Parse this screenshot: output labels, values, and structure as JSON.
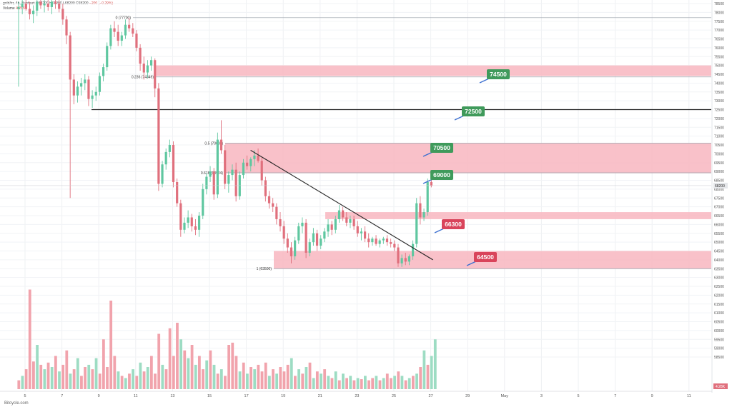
{
  "header": {
    "symbol": "gold/irr, 4h, Bonbast",
    "ohlc": "O68200 H68200 L68200 C68200",
    "change": "−200 (−0.29%)",
    "volume_label": "Volume",
    "volume_value": "4.285K"
  },
  "watermark": "Bitcycle.com",
  "colors": {
    "bull": "#5fc7a0",
    "bear": "#e0707d",
    "bull_vol": "#9ddcc3",
    "bear_vol": "#f1a3ac",
    "zone": "#f8b6bf",
    "label_green": "#3f9a5b",
    "label_red": "#d9445b"
  },
  "chart_data": {
    "type": "candlestick",
    "y_axis_ticks": [
      78500,
      78000,
      77500,
      77000,
      76500,
      76000,
      75500,
      75000,
      74500,
      74000,
      73500,
      73000,
      72500,
      72000,
      71500,
      71000,
      70500,
      70000,
      69500,
      69000,
      68500,
      68000,
      67500,
      67000,
      66500,
      66000,
      65500,
      65000,
      64500,
      64000,
      63500,
      63000,
      62500,
      62000,
      61500,
      61000,
      60500,
      60000,
      59500,
      59000,
      58500
    ],
    "x_axis_ticks": [
      "5",
      "7",
      "9",
      "11",
      "13",
      "15",
      "17",
      "19",
      "21",
      "23",
      "25",
      "27",
      "29",
      "May",
      "3",
      "5",
      "7",
      "9",
      "11"
    ],
    "last_price": "68200",
    "right_badge": "4.28K",
    "fib_levels": [
      {
        "label": "0 (77700)",
        "value": 77700
      },
      {
        "label": "0.236 (74349)",
        "value": 74349
      },
      {
        "label": "0.5 (70600)",
        "value": 70600
      },
      {
        "label": "0.618 (68924)",
        "value": 68924
      },
      {
        "label": "1 (63500)",
        "value": 63500
      }
    ],
    "horizontal_line": 72500,
    "zones": [
      {
        "from": 74400,
        "to": 75000
      },
      {
        "from": 68900,
        "to": 70600
      },
      {
        "from": 66300,
        "to": 66700
      },
      {
        "from": 63500,
        "to": 64500
      }
    ],
    "trendline": {
      "start": {
        "x": "17",
        "y": 70200
      },
      "end": {
        "x": "27",
        "y": 64000
      }
    },
    "labels": [
      {
        "text": "74500",
        "color": "green"
      },
      {
        "text": "72500",
        "color": "green"
      },
      {
        "text": "70500",
        "color": "green"
      },
      {
        "text": "69000",
        "color": "green"
      },
      {
        "text": "66300",
        "color": "red"
      },
      {
        "text": "64500",
        "color": "red"
      }
    ],
    "candles": [
      {
        "o": 78200,
        "h": 78600,
        "l": 73800,
        "c": 78300
      },
      {
        "o": 78300,
        "h": 78700,
        "l": 77900,
        "c": 78500
      },
      {
        "o": 78500,
        "h": 78700,
        "l": 78100,
        "c": 78200
      },
      {
        "o": 78200,
        "h": 78600,
        "l": 77600,
        "c": 77900
      },
      {
        "o": 77900,
        "h": 78400,
        "l": 77400,
        "c": 78100
      },
      {
        "o": 78100,
        "h": 78800,
        "l": 77800,
        "c": 78600
      },
      {
        "o": 78600,
        "h": 78800,
        "l": 78200,
        "c": 78400
      },
      {
        "o": 78400,
        "h": 78700,
        "l": 78000,
        "c": 78500
      },
      {
        "o": 78500,
        "h": 78800,
        "l": 78100,
        "c": 78300
      },
      {
        "o": 78300,
        "h": 78700,
        "l": 77900,
        "c": 78600
      },
      {
        "o": 78600,
        "h": 78800,
        "l": 78200,
        "c": 78500
      },
      {
        "o": 78500,
        "h": 78700,
        "l": 78000,
        "c": 78200
      },
      {
        "o": 78200,
        "h": 78500,
        "l": 77300,
        "c": 77600
      },
      {
        "o": 77600,
        "h": 77800,
        "l": 76200,
        "c": 76700
      },
      {
        "o": 76700,
        "h": 76900,
        "l": 67500,
        "c": 74200
      },
      {
        "o": 74200,
        "h": 74500,
        "l": 72800,
        "c": 73300
      },
      {
        "o": 73300,
        "h": 74100,
        "l": 72900,
        "c": 73800
      },
      {
        "o": 73800,
        "h": 74300,
        "l": 73300,
        "c": 74000
      },
      {
        "o": 74000,
        "h": 74500,
        "l": 73600,
        "c": 74200
      },
      {
        "o": 74200,
        "h": 74400,
        "l": 72700,
        "c": 73100
      },
      {
        "o": 73100,
        "h": 73600,
        "l": 72600,
        "c": 73300
      },
      {
        "o": 73300,
        "h": 73800,
        "l": 73000,
        "c": 73500
      },
      {
        "o": 73500,
        "h": 74600,
        "l": 73300,
        "c": 74400
      },
      {
        "o": 74400,
        "h": 75100,
        "l": 74100,
        "c": 74900
      },
      {
        "o": 74900,
        "h": 76300,
        "l": 74700,
        "c": 76100
      },
      {
        "o": 76100,
        "h": 77300,
        "l": 75900,
        "c": 77100
      },
      {
        "o": 77100,
        "h": 77500,
        "l": 76600,
        "c": 76900
      },
      {
        "o": 76900,
        "h": 77300,
        "l": 76100,
        "c": 76400
      },
      {
        "o": 76400,
        "h": 76900,
        "l": 76100,
        "c": 76700
      },
      {
        "o": 76700,
        "h": 77600,
        "l": 76500,
        "c": 77300
      },
      {
        "o": 77300,
        "h": 77700,
        "l": 76900,
        "c": 77100
      },
      {
        "o": 77100,
        "h": 77400,
        "l": 76600,
        "c": 76800
      },
      {
        "o": 76800,
        "h": 77000,
        "l": 75800,
        "c": 76000
      },
      {
        "o": 76000,
        "h": 76200,
        "l": 74700,
        "c": 75100
      },
      {
        "o": 75100,
        "h": 75500,
        "l": 74200,
        "c": 74600
      },
      {
        "o": 74600,
        "h": 75300,
        "l": 74300,
        "c": 75000
      },
      {
        "o": 75000,
        "h": 75500,
        "l": 74700,
        "c": 75300
      },
      {
        "o": 75300,
        "h": 75400,
        "l": 73200,
        "c": 73700
      },
      {
        "o": 73700,
        "h": 74000,
        "l": 67900,
        "c": 68300
      },
      {
        "o": 68300,
        "h": 69600,
        "l": 68100,
        "c": 69400
      },
      {
        "o": 69400,
        "h": 70300,
        "l": 69100,
        "c": 70100
      },
      {
        "o": 70100,
        "h": 70800,
        "l": 69800,
        "c": 70500
      },
      {
        "o": 70500,
        "h": 70700,
        "l": 68100,
        "c": 68400
      },
      {
        "o": 68400,
        "h": 68600,
        "l": 67000,
        "c": 67200
      },
      {
        "o": 67200,
        "h": 67400,
        "l": 65300,
        "c": 65700
      },
      {
        "o": 65700,
        "h": 66400,
        "l": 65500,
        "c": 66100
      },
      {
        "o": 66100,
        "h": 66800,
        "l": 65800,
        "c": 66400
      },
      {
        "o": 66400,
        "h": 66600,
        "l": 65600,
        "c": 65900
      },
      {
        "o": 65900,
        "h": 66300,
        "l": 65400,
        "c": 65700
      },
      {
        "o": 65700,
        "h": 66700,
        "l": 65300,
        "c": 66500
      },
      {
        "o": 66500,
        "h": 68300,
        "l": 66300,
        "c": 68000
      },
      {
        "o": 68000,
        "h": 68900,
        "l": 67700,
        "c": 68700
      },
      {
        "o": 68700,
        "h": 69300,
        "l": 68400,
        "c": 69000
      },
      {
        "o": 69000,
        "h": 69200,
        "l": 67400,
        "c": 67700
      },
      {
        "o": 67700,
        "h": 71200,
        "l": 67500,
        "c": 70800
      },
      {
        "o": 70800,
        "h": 71900,
        "l": 70000,
        "c": 70200
      },
      {
        "o": 70200,
        "h": 70500,
        "l": 68000,
        "c": 68300
      },
      {
        "o": 68300,
        "h": 69000,
        "l": 67800,
        "c": 68800
      },
      {
        "o": 68800,
        "h": 69400,
        "l": 68500,
        "c": 69100
      },
      {
        "o": 69100,
        "h": 69500,
        "l": 67300,
        "c": 67600
      },
      {
        "o": 67600,
        "h": 69000,
        "l": 67400,
        "c": 68800
      },
      {
        "o": 68800,
        "h": 69700,
        "l": 68600,
        "c": 69500
      },
      {
        "o": 69500,
        "h": 69900,
        "l": 69100,
        "c": 69300
      },
      {
        "o": 69300,
        "h": 69800,
        "l": 69000,
        "c": 69700
      },
      {
        "o": 69700,
        "h": 70200,
        "l": 69300,
        "c": 69900
      },
      {
        "o": 69900,
        "h": 70300,
        "l": 69500,
        "c": 69600
      },
      {
        "o": 69600,
        "h": 69800,
        "l": 68200,
        "c": 68500
      },
      {
        "o": 68500,
        "h": 68700,
        "l": 67300,
        "c": 67600
      },
      {
        "o": 67600,
        "h": 67900,
        "l": 66900,
        "c": 67200
      },
      {
        "o": 67200,
        "h": 67500,
        "l": 66700,
        "c": 67000
      },
      {
        "o": 67000,
        "h": 67200,
        "l": 66000,
        "c": 66300
      },
      {
        "o": 66300,
        "h": 66700,
        "l": 65600,
        "c": 65900
      },
      {
        "o": 65900,
        "h": 66200,
        "l": 64900,
        "c": 65200
      },
      {
        "o": 65200,
        "h": 65500,
        "l": 64400,
        "c": 64700
      },
      {
        "o": 64700,
        "h": 65000,
        "l": 63800,
        "c": 64200
      },
      {
        "o": 64200,
        "h": 65300,
        "l": 64000,
        "c": 65100
      },
      {
        "o": 65100,
        "h": 66100,
        "l": 64900,
        "c": 65900
      },
      {
        "o": 65900,
        "h": 66400,
        "l": 65500,
        "c": 66100
      },
      {
        "o": 66100,
        "h": 66300,
        "l": 64100,
        "c": 64400
      },
      {
        "o": 64400,
        "h": 65200,
        "l": 64200,
        "c": 65000
      },
      {
        "o": 65000,
        "h": 65800,
        "l": 64800,
        "c": 65500
      },
      {
        "o": 65500,
        "h": 65700,
        "l": 64500,
        "c": 64800
      },
      {
        "o": 64800,
        "h": 65400,
        "l": 64600,
        "c": 65200
      },
      {
        "o": 65200,
        "h": 65800,
        "l": 65000,
        "c": 65600
      },
      {
        "o": 65600,
        "h": 66300,
        "l": 65300,
        "c": 66000
      },
      {
        "o": 66000,
        "h": 66200,
        "l": 65400,
        "c": 65700
      },
      {
        "o": 65700,
        "h": 66500,
        "l": 65500,
        "c": 66300
      },
      {
        "o": 66300,
        "h": 67100,
        "l": 66100,
        "c": 66800
      },
      {
        "o": 66800,
        "h": 67000,
        "l": 66200,
        "c": 66400
      },
      {
        "o": 66400,
        "h": 66700,
        "l": 65900,
        "c": 66100
      },
      {
        "o": 66100,
        "h": 66500,
        "l": 65800,
        "c": 66300
      },
      {
        "o": 66300,
        "h": 66500,
        "l": 65700,
        "c": 65900
      },
      {
        "o": 65900,
        "h": 66200,
        "l": 65300,
        "c": 65500
      },
      {
        "o": 65500,
        "h": 65800,
        "l": 65100,
        "c": 65600
      },
      {
        "o": 65600,
        "h": 65900,
        "l": 65000,
        "c": 65200
      },
      {
        "o": 65200,
        "h": 65500,
        "l": 64700,
        "c": 65000
      },
      {
        "o": 65000,
        "h": 65300,
        "l": 64800,
        "c": 65200
      },
      {
        "o": 65200,
        "h": 65400,
        "l": 64800,
        "c": 64900
      },
      {
        "o": 64900,
        "h": 65200,
        "l": 64700,
        "c": 65100
      },
      {
        "o": 65100,
        "h": 65300,
        "l": 64900,
        "c": 65200
      },
      {
        "o": 65200,
        "h": 65400,
        "l": 64800,
        "c": 65000
      },
      {
        "o": 65000,
        "h": 65200,
        "l": 64700,
        "c": 64900
      },
      {
        "o": 64900,
        "h": 65100,
        "l": 64500,
        "c": 64700
      },
      {
        "o": 64700,
        "h": 64900,
        "l": 63600,
        "c": 63800
      },
      {
        "o": 63800,
        "h": 64300,
        "l": 63600,
        "c": 64100
      },
      {
        "o": 64100,
        "h": 64400,
        "l": 63700,
        "c": 63900
      },
      {
        "o": 63900,
        "h": 64300,
        "l": 63700,
        "c": 64200
      },
      {
        "o": 64200,
        "h": 65100,
        "l": 64000,
        "c": 64900
      },
      {
        "o": 64900,
        "h": 67500,
        "l": 64700,
        "c": 67200
      },
      {
        "o": 67200,
        "h": 67600,
        "l": 66000,
        "c": 66400
      },
      {
        "o": 66400,
        "h": 66900,
        "l": 66200,
        "c": 66700
      },
      {
        "o": 66700,
        "h": 68600,
        "l": 66500,
        "c": 68400
      },
      {
        "o": 68400,
        "h": 68600,
        "l": 68100,
        "c": 68200
      }
    ],
    "volume": [
      {
        "v": 8,
        "up": false
      },
      {
        "v": 12,
        "up": true
      },
      {
        "v": 18,
        "up": false
      },
      {
        "v": 90,
        "up": false
      },
      {
        "v": 25,
        "up": false
      },
      {
        "v": 40,
        "up": true
      },
      {
        "v": 22,
        "up": false
      },
      {
        "v": 18,
        "up": true
      },
      {
        "v": 24,
        "up": false
      },
      {
        "v": 20,
        "up": true
      },
      {
        "v": 30,
        "up": false
      },
      {
        "v": 16,
        "up": true
      },
      {
        "v": 22,
        "up": false
      },
      {
        "v": 35,
        "up": false
      },
      {
        "v": 14,
        "up": true
      },
      {
        "v": 18,
        "up": false
      },
      {
        "v": 28,
        "up": true
      },
      {
        "v": 12,
        "up": false
      },
      {
        "v": 20,
        "up": false
      },
      {
        "v": 22,
        "up": true
      },
      {
        "v": 18,
        "up": false
      },
      {
        "v": 28,
        "up": true
      },
      {
        "v": 14,
        "up": false
      },
      {
        "v": 45,
        "up": false
      },
      {
        "v": 20,
        "up": false
      },
      {
        "v": 80,
        "up": false
      },
      {
        "v": 30,
        "up": false
      },
      {
        "v": 16,
        "up": true
      },
      {
        "v": 12,
        "up": false
      },
      {
        "v": 10,
        "up": true
      },
      {
        "v": 14,
        "up": false
      },
      {
        "v": 18,
        "up": true
      },
      {
        "v": 12,
        "up": false
      },
      {
        "v": 24,
        "up": true
      },
      {
        "v": 16,
        "up": false
      },
      {
        "v": 20,
        "up": true
      },
      {
        "v": 30,
        "up": false
      },
      {
        "v": 14,
        "up": false
      },
      {
        "v": 50,
        "up": false
      },
      {
        "v": 22,
        "up": true
      },
      {
        "v": 18,
        "up": false
      },
      {
        "v": 55,
        "up": false
      },
      {
        "v": 30,
        "up": false
      },
      {
        "v": 60,
        "up": false
      },
      {
        "v": 45,
        "up": true
      },
      {
        "v": 35,
        "up": false
      },
      {
        "v": 28,
        "up": true
      },
      {
        "v": 40,
        "up": false
      },
      {
        "v": 22,
        "up": true
      },
      {
        "v": 30,
        "up": false
      },
      {
        "v": 18,
        "up": false
      },
      {
        "v": 26,
        "up": true
      },
      {
        "v": 35,
        "up": false
      },
      {
        "v": 22,
        "up": true
      },
      {
        "v": 14,
        "up": false
      },
      {
        "v": 18,
        "up": true
      },
      {
        "v": 12,
        "up": false
      },
      {
        "v": 40,
        "up": false
      },
      {
        "v": 42,
        "up": false
      },
      {
        "v": 30,
        "up": false
      },
      {
        "v": 16,
        "up": true
      },
      {
        "v": 24,
        "up": false
      },
      {
        "v": 14,
        "up": true
      },
      {
        "v": 20,
        "up": false
      },
      {
        "v": 18,
        "up": true
      },
      {
        "v": 22,
        "up": false
      },
      {
        "v": 16,
        "up": false
      },
      {
        "v": 24,
        "up": false
      },
      {
        "v": 12,
        "up": true
      },
      {
        "v": 18,
        "up": false
      },
      {
        "v": 14,
        "up": true
      },
      {
        "v": 20,
        "up": false
      },
      {
        "v": 16,
        "up": false
      },
      {
        "v": 22,
        "up": false
      },
      {
        "v": 28,
        "up": true
      },
      {
        "v": 12,
        "up": false
      },
      {
        "v": 18,
        "up": true
      },
      {
        "v": 14,
        "up": false
      },
      {
        "v": 20,
        "up": true
      },
      {
        "v": 24,
        "up": false
      },
      {
        "v": 10,
        "up": true
      },
      {
        "v": 16,
        "up": false
      },
      {
        "v": 14,
        "up": true
      },
      {
        "v": 18,
        "up": false
      },
      {
        "v": 12,
        "up": true
      },
      {
        "v": 10,
        "up": false
      },
      {
        "v": 16,
        "up": true
      },
      {
        "v": 8,
        "up": false
      },
      {
        "v": 14,
        "up": true
      },
      {
        "v": 10,
        "up": false
      },
      {
        "v": 12,
        "up": true
      },
      {
        "v": 8,
        "up": false
      },
      {
        "v": 10,
        "up": true
      },
      {
        "v": 9,
        "up": false
      },
      {
        "v": 12,
        "up": true
      },
      {
        "v": 8,
        "up": false
      },
      {
        "v": 10,
        "up": false
      },
      {
        "v": 12,
        "up": true
      },
      {
        "v": 8,
        "up": false
      },
      {
        "v": 10,
        "up": true
      },
      {
        "v": 14,
        "up": false
      },
      {
        "v": 10,
        "up": false
      },
      {
        "v": 12,
        "up": true
      },
      {
        "v": 16,
        "up": false
      },
      {
        "v": 12,
        "up": true
      },
      {
        "v": 8,
        "up": false
      },
      {
        "v": 10,
        "up": true
      },
      {
        "v": 12,
        "up": false
      },
      {
        "v": 14,
        "up": true
      },
      {
        "v": 20,
        "up": false
      },
      {
        "v": 35,
        "up": true
      },
      {
        "v": 22,
        "up": false
      },
      {
        "v": 30,
        "up": true
      },
      {
        "v": 45,
        "up": true
      }
    ]
  }
}
